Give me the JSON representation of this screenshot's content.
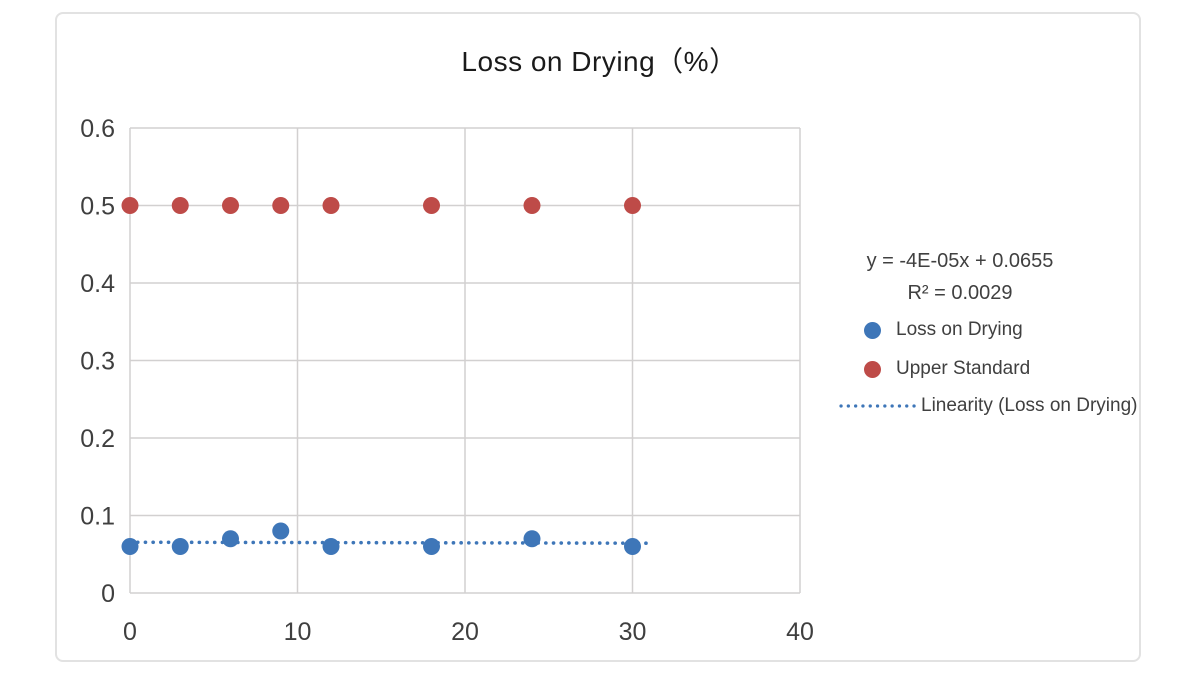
{
  "card": {
    "background": "#ffffff",
    "border_color": "#e2e2e2"
  },
  "chart_data": {
    "type": "scatter",
    "title": "Loss on Drying（%）",
    "x": [
      0,
      3,
      6,
      9,
      12,
      18,
      24,
      30
    ],
    "series": [
      {
        "name": "Loss on Drying",
        "color": "#3E76B8",
        "values": [
          0.06,
          0.06,
          0.07,
          0.08,
          0.06,
          0.06,
          0.07,
          0.06
        ]
      },
      {
        "name": "Upper Standard",
        "color": "#BE4B48",
        "values": [
          0.5,
          0.5,
          0.5,
          0.5,
          0.5,
          0.5,
          0.5,
          0.5
        ]
      }
    ],
    "trendline": {
      "label": "Linearity (Loss on Drying)",
      "equation": "y = -4E-05x + 0.0655",
      "r_squared": "R² = 0.0029",
      "slope": -4e-05,
      "intercept": 0.0655,
      "x_start": 0,
      "x_end": 31,
      "color": "#3E76B8",
      "style": "dotted"
    },
    "xlim": [
      0,
      40
    ],
    "ylim": [
      0,
      0.6
    ],
    "x_ticks": [
      "0",
      "10",
      "20",
      "30",
      "40"
    ],
    "y_ticks": [
      "0",
      "0.1",
      "0.2",
      "0.3",
      "0.4",
      "0.5",
      "0.6"
    ],
    "grid": true,
    "gridline_color": "#d2d0d0",
    "axis_label_color": "#3f3f3f",
    "legend_position": "right",
    "legend_text_color": "#404040"
  }
}
